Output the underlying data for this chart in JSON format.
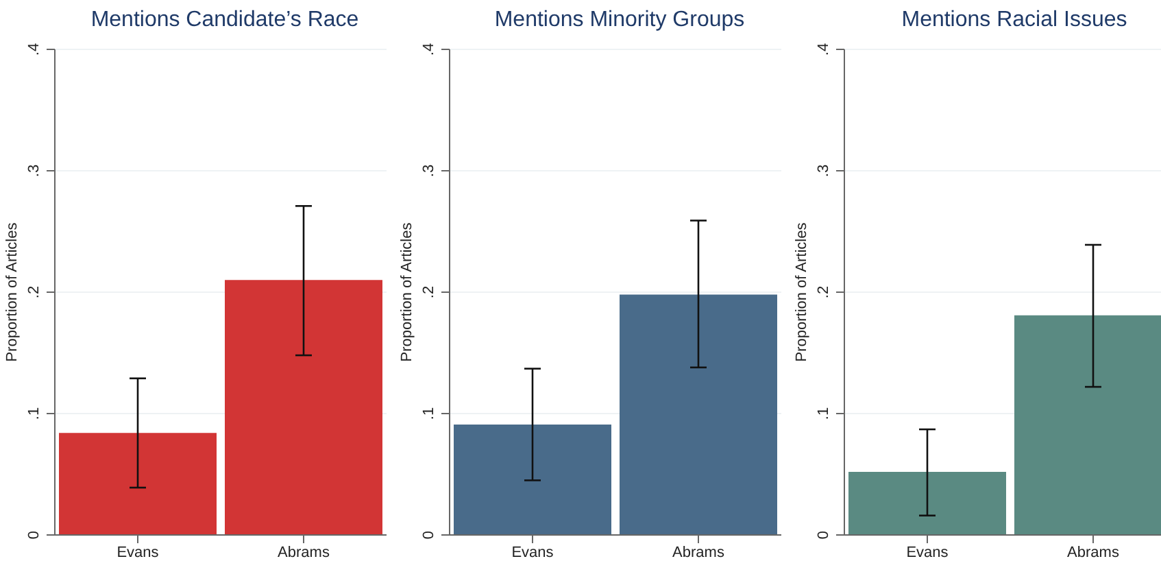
{
  "chart_data": [
    {
      "type": "bar",
      "title": "Mentions Candidate’s Race",
      "ylabel": "Proportion of Articles",
      "categories": [
        "Evans",
        "Abrams"
      ],
      "values": [
        0.084,
        0.21
      ],
      "errors": [
        [
          0.039,
          0.129
        ],
        [
          0.148,
          0.271
        ]
      ],
      "color": "#d23535",
      "ylim": [
        0,
        0.4
      ],
      "yticks": [
        {
          "value": 0,
          "label": "0"
        },
        {
          "value": 0.1,
          "label": ".1"
        },
        {
          "value": 0.2,
          "label": ".2"
        },
        {
          "value": 0.3,
          "label": ".3"
        },
        {
          "value": 0.4,
          "label": ".4"
        }
      ],
      "grid": "y"
    },
    {
      "type": "bar",
      "title": "Mentions Minority Groups",
      "ylabel": "Proportion of Articles",
      "categories": [
        "Evans",
        "Abrams"
      ],
      "values": [
        0.091,
        0.198
      ],
      "errors": [
        [
          0.045,
          0.137
        ],
        [
          0.138,
          0.259
        ]
      ],
      "color": "#496b8a",
      "ylim": [
        0,
        0.4
      ],
      "yticks": [
        {
          "value": 0,
          "label": "0"
        },
        {
          "value": 0.1,
          "label": ".1"
        },
        {
          "value": 0.2,
          "label": ".2"
        },
        {
          "value": 0.3,
          "label": ".3"
        },
        {
          "value": 0.4,
          "label": ".4"
        }
      ],
      "grid": "y"
    },
    {
      "type": "bar",
      "title": "Mentions Racial Issues",
      "ylabel": "Proportion of Articles",
      "categories": [
        "Evans",
        "Abrams"
      ],
      "values": [
        0.052,
        0.181
      ],
      "errors": [
        [
          0.016,
          0.087
        ],
        [
          0.122,
          0.239
        ]
      ],
      "color": "#5a8a82",
      "ylim": [
        0,
        0.4
      ],
      "yticks": [
        {
          "value": 0,
          "label": "0"
        },
        {
          "value": 0.1,
          "label": ".1"
        },
        {
          "value": 0.2,
          "label": ".2"
        },
        {
          "value": 0.3,
          "label": ".3"
        },
        {
          "value": 0.4,
          "label": ".4"
        }
      ],
      "grid": "y"
    }
  ]
}
